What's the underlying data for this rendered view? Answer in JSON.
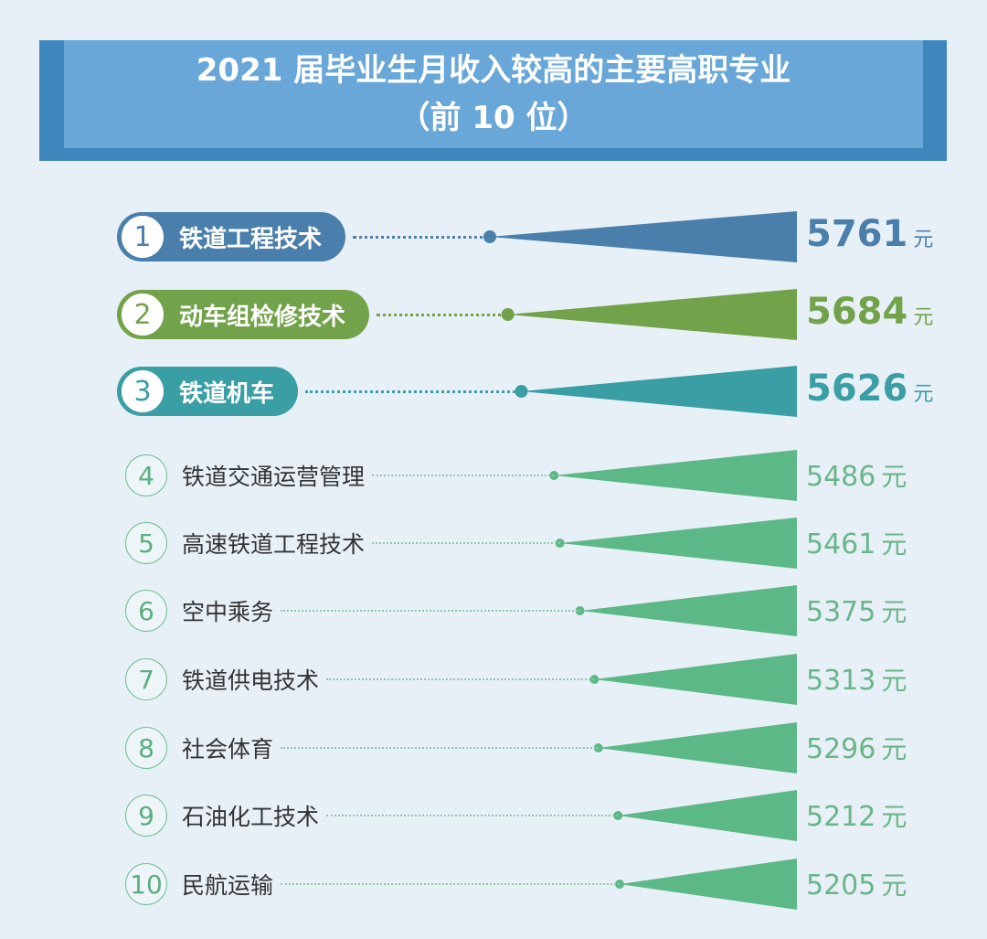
{
  "chart_data": {
    "type": "bar",
    "title": "2021 届毕业生月收入较高的主要高职专业",
    "subtitle": "（前 10 位）",
    "unit": "元",
    "categories": [
      "铁道工程技术",
      "动车组检修技术",
      "铁道机车",
      "铁道交通运营管理",
      "高速铁道工程技术",
      "空中乘务",
      "铁道供电技术",
      "社会体育",
      "石油化工技术",
      "民航运输"
    ],
    "ranks": [
      "1",
      "2",
      "3",
      "4",
      "5",
      "6",
      "7",
      "8",
      "9",
      "10"
    ],
    "values": [
      5761,
      5684,
      5626,
      5486,
      5461,
      5375,
      5313,
      5296,
      5212,
      5205
    ],
    "colors": [
      "#4a7fab",
      "#72a34a",
      "#3a9ea5",
      "#5cb887",
      "#5cb887",
      "#5cb887",
      "#5cb887",
      "#5cb887",
      "#5cb887",
      "#5cb887"
    ]
  }
}
